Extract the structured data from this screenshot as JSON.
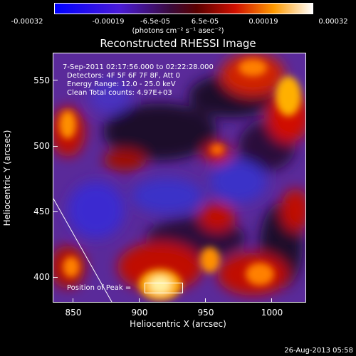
{
  "colorbar": {
    "ticks": [
      "-0.00032",
      "-0.00019",
      "-6.5e-05",
      "6.5e-05",
      "0.00019",
      "0.00032"
    ],
    "units": "(photons cm⁻² s⁻¹ asec⁻²)"
  },
  "title": "Reconstructed RHESSI Image",
  "info": {
    "line1": "7-Sep-2011 02:17:56.000 to 02:22:28.000",
    "line2": "Detectors: 4F 5F 6F 7F 8F, Att 0",
    "line3": "Energy Range: 12.0 - 25.0 keV",
    "line4": "Clean    Total counts: 4.97E+03",
    "peak_label": "Position of Peak = "
  },
  "axes": {
    "xlabel": "Heliocentric X (arcsec)",
    "ylabel": "Heliocentric Y (arcsec)",
    "xticks": [
      "850",
      "900",
      "950",
      "1000"
    ],
    "yticks": [
      "550",
      "500",
      "450",
      "400"
    ],
    "xrange": [
      835,
      1025
    ],
    "yrange": [
      378,
      566
    ]
  },
  "timestamp": "26-Aug-2013 05:58"
}
